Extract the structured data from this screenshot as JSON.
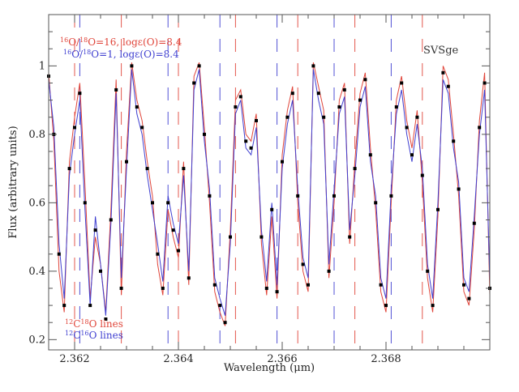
{
  "chart_data": {
    "type": "line",
    "xlabel": "Wavelength (μm)",
    "ylabel": "Flux (arbitrary units)",
    "xlim": [
      2.3615,
      2.37
    ],
    "ylim": [
      0.17,
      1.15
    ],
    "x_ticks": [
      2.362,
      2.364,
      2.366,
      2.368
    ],
    "x_tick_labels": [
      "2.362",
      "2.364",
      "2.366",
      "2.368"
    ],
    "y_ticks": [
      0.2,
      0.4,
      0.6,
      0.8,
      1.0
    ],
    "y_tick_labels": [
      "0.2",
      "0.4",
      "0.6",
      "0.8",
      "1"
    ],
    "star_label": "SVSge",
    "colors": {
      "red": "#e0453a",
      "blue": "#3f3fd0",
      "observed": "#000000",
      "frame": "#555555"
    },
    "model_legend": [
      {
        "text": "16O/18O=16, logε(O)=8.4",
        "color": "red"
      },
      {
        "text": "16O/18O=1, logε(O)=8.4",
        "color": "blue"
      }
    ],
    "line_legend": [
      {
        "text": "12C18O lines",
        "color": "red"
      },
      {
        "text": "12C16O lines",
        "color": "blue"
      }
    ],
    "line_markers": {
      "red": [
        2.362,
        2.3629,
        2.364,
        2.3651,
        2.3663,
        2.3674,
        2.3687
      ],
      "blue": [
        2.3621,
        2.3638,
        2.3648,
        2.3659,
        2.367,
        2.3681
      ]
    },
    "series": [
      {
        "name": "observed",
        "style": "points",
        "color": "observed",
        "x": [
          2.3615,
          2.3616,
          2.3617,
          2.3618,
          2.3619,
          2.362,
          2.3621,
          2.3622,
          2.3623,
          2.3624,
          2.3625,
          2.3626,
          2.3627,
          2.3628,
          2.3629,
          2.363,
          2.3631,
          2.3632,
          2.3633,
          2.3634,
          2.3635,
          2.3636,
          2.3637,
          2.3638,
          2.3639,
          2.364,
          2.3641,
          2.3642,
          2.3643,
          2.3644,
          2.3645,
          2.3646,
          2.3647,
          2.3648,
          2.3649,
          2.365,
          2.3651,
          2.3652,
          2.3653,
          2.3654,
          2.3655,
          2.3656,
          2.3657,
          2.3658,
          2.3659,
          2.366,
          2.3661,
          2.3662,
          2.3663,
          2.3664,
          2.3665,
          2.3666,
          2.3667,
          2.3668,
          2.3669,
          2.367,
          2.3671,
          2.3672,
          2.3673,
          2.3674,
          2.3675,
          2.3676,
          2.3677,
          2.3678,
          2.3679,
          2.368,
          2.3681,
          2.3682,
          2.3683,
          2.3684,
          2.3685,
          2.3686,
          2.3687,
          2.3688,
          2.3689,
          2.369,
          2.3691,
          2.3692,
          2.3693,
          2.3694,
          2.3695,
          2.3696,
          2.3697,
          2.3698,
          2.3699,
          2.37
        ],
        "y": [
          0.97,
          0.8,
          0.45,
          0.3,
          0.7,
          0.82,
          0.92,
          0.6,
          0.3,
          0.52,
          0.4,
          0.26,
          0.55,
          0.93,
          0.35,
          0.72,
          1.0,
          0.88,
          0.82,
          0.7,
          0.6,
          0.45,
          0.35,
          0.6,
          0.52,
          0.46,
          0.7,
          0.38,
          0.95,
          1.0,
          0.8,
          0.62,
          0.36,
          0.3,
          0.25,
          0.5,
          0.88,
          0.91,
          0.78,
          0.76,
          0.84,
          0.5,
          0.35,
          0.58,
          0.34,
          0.72,
          0.85,
          0.92,
          0.62,
          0.42,
          0.36,
          1.0,
          0.92,
          0.85,
          0.4,
          0.62,
          0.88,
          0.93,
          0.5,
          0.7,
          0.9,
          0.96,
          0.74,
          0.6,
          0.36,
          0.3,
          0.62,
          0.88,
          0.95,
          0.82,
          0.74,
          0.85,
          0.68,
          0.4,
          0.3,
          0.58,
          0.98,
          0.94,
          0.78,
          0.64,
          0.36,
          0.32,
          0.54,
          0.82,
          0.95,
          0.35
        ]
      },
      {
        "name": "16O/18O=16, logε(O)=8.4",
        "style": "line",
        "color": "red",
        "x": [
          2.3615,
          2.3616,
          2.3617,
          2.3618,
          2.3619,
          2.362,
          2.3621,
          2.3622,
          2.3623,
          2.3624,
          2.3625,
          2.3626,
          2.3627,
          2.3628,
          2.3629,
          2.363,
          2.3631,
          2.3632,
          2.3633,
          2.3634,
          2.3635,
          2.3636,
          2.3637,
          2.3638,
          2.3639,
          2.364,
          2.3641,
          2.3642,
          2.3643,
          2.3644,
          2.3645,
          2.3646,
          2.3647,
          2.3648,
          2.3649,
          2.365,
          2.3651,
          2.3652,
          2.3653,
          2.3654,
          2.3655,
          2.3656,
          2.3657,
          2.3658,
          2.3659,
          2.366,
          2.3661,
          2.3662,
          2.3663,
          2.3664,
          2.3665,
          2.3666,
          2.3667,
          2.3668,
          2.3669,
          2.367,
          2.3671,
          2.3672,
          2.3673,
          2.3674,
          2.3675,
          2.3676,
          2.3677,
          2.3678,
          2.3679,
          2.368,
          2.3681,
          2.3682,
          2.3683,
          2.3684,
          2.3685,
          2.3686,
          2.3687,
          2.3688,
          2.3689,
          2.369,
          2.3691,
          2.3692,
          2.3693,
          2.3694,
          2.3695,
          2.3696,
          2.3697,
          2.3698,
          2.3699,
          2.37
        ],
        "y": [
          0.98,
          0.78,
          0.4,
          0.28,
          0.72,
          0.85,
          0.95,
          0.65,
          0.32,
          0.5,
          0.42,
          0.28,
          0.58,
          0.96,
          0.33,
          0.75,
          1.01,
          0.9,
          0.84,
          0.72,
          0.62,
          0.42,
          0.33,
          0.58,
          0.5,
          0.44,
          0.72,
          0.36,
          0.97,
          1.01,
          0.82,
          0.6,
          0.34,
          0.28,
          0.24,
          0.52,
          0.9,
          0.93,
          0.8,
          0.78,
          0.86,
          0.48,
          0.33,
          0.56,
          0.32,
          0.74,
          0.87,
          0.94,
          0.6,
          0.4,
          0.34,
          1.01,
          0.94,
          0.87,
          0.38,
          0.6,
          0.9,
          0.95,
          0.48,
          0.72,
          0.92,
          0.98,
          0.76,
          0.58,
          0.34,
          0.28,
          0.6,
          0.9,
          0.97,
          0.84,
          0.76,
          0.87,
          0.66,
          0.38,
          0.28,
          0.56,
          1.0,
          0.96,
          0.8,
          0.62,
          0.34,
          0.3,
          0.52,
          0.84,
          0.98,
          0.33
        ]
      },
      {
        "name": "16O/18O=1, logε(O)=8.4",
        "style": "line",
        "color": "blue",
        "x": [
          2.3615,
          2.3616,
          2.3617,
          2.3618,
          2.3619,
          2.362,
          2.3621,
          2.3622,
          2.3623,
          2.3624,
          2.3625,
          2.3626,
          2.3627,
          2.3628,
          2.3629,
          2.363,
          2.3631,
          2.3632,
          2.3633,
          2.3634,
          2.3635,
          2.3636,
          2.3637,
          2.3638,
          2.3639,
          2.364,
          2.3641,
          2.3642,
          2.3643,
          2.3644,
          2.3645,
          2.3646,
          2.3647,
          2.3648,
          2.3649,
          2.365,
          2.3651,
          2.3652,
          2.3653,
          2.3654,
          2.3655,
          2.3656,
          2.3657,
          2.3658,
          2.3659,
          2.366,
          2.3661,
          2.3662,
          2.3663,
          2.3664,
          2.3665,
          2.3666,
          2.3667,
          2.3668,
          2.3669,
          2.367,
          2.3671,
          2.3672,
          2.3673,
          2.3674,
          2.3675,
          2.3676,
          2.3677,
          2.3678,
          2.3679,
          2.368,
          2.3681,
          2.3682,
          2.3683,
          2.3684,
          2.3685,
          2.3686,
          2.3687,
          2.3688,
          2.3689,
          2.369,
          2.3691,
          2.3692,
          2.3693,
          2.3694,
          2.3695,
          2.3696,
          2.3697,
          2.3698,
          2.3699,
          2.37
        ],
        "y": [
          0.96,
          0.82,
          0.48,
          0.32,
          0.68,
          0.8,
          0.9,
          0.58,
          0.3,
          0.56,
          0.42,
          0.27,
          0.54,
          0.92,
          0.38,
          0.7,
          0.99,
          0.86,
          0.8,
          0.68,
          0.58,
          0.48,
          0.37,
          0.62,
          0.54,
          0.48,
          0.68,
          0.4,
          0.93,
          0.99,
          0.78,
          0.64,
          0.38,
          0.32,
          0.27,
          0.48,
          0.86,
          0.9,
          0.76,
          0.74,
          0.82,
          0.52,
          0.37,
          0.6,
          0.36,
          0.7,
          0.83,
          0.9,
          0.64,
          0.44,
          0.38,
          0.99,
          0.9,
          0.83,
          0.42,
          0.64,
          0.86,
          0.91,
          0.52,
          0.68,
          0.88,
          0.94,
          0.72,
          0.62,
          0.38,
          0.32,
          0.64,
          0.86,
          0.93,
          0.8,
          0.72,
          0.83,
          0.7,
          0.42,
          0.32,
          0.6,
          0.96,
          0.92,
          0.76,
          0.66,
          0.38,
          0.34,
          0.56,
          0.8,
          0.93,
          0.37
        ]
      }
    ]
  }
}
